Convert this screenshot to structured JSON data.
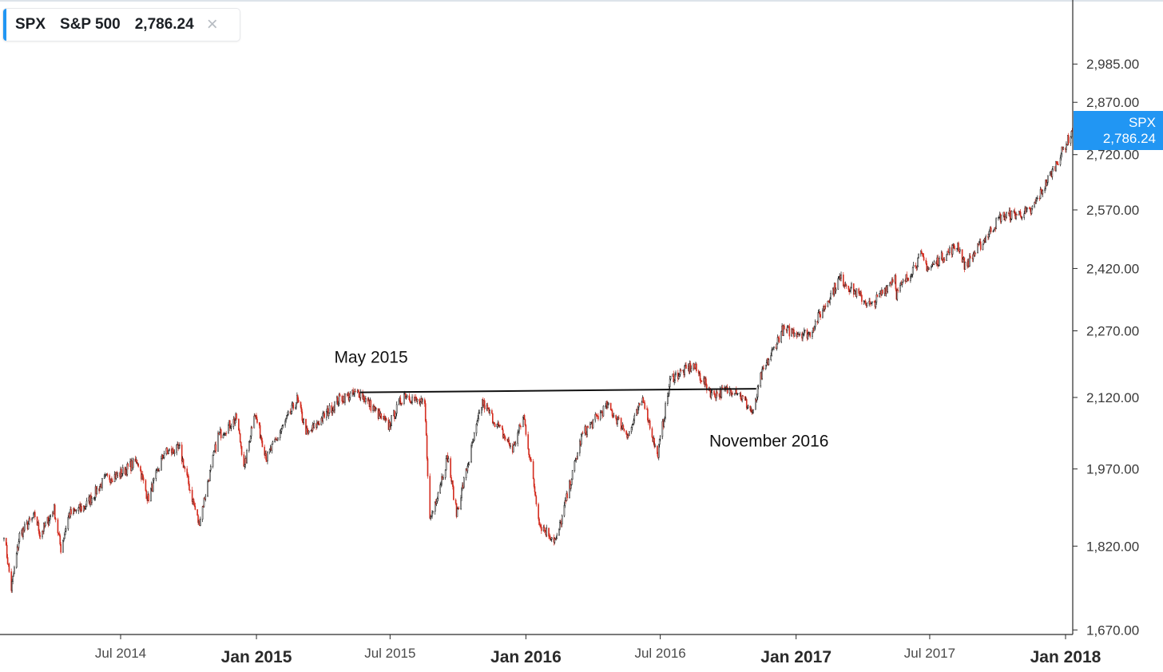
{
  "header": {
    "symbol": "SPX",
    "name": "S&P 500",
    "price": "2,786.24",
    "close_glyph": "×",
    "close_icon": "close-icon"
  },
  "price_tag": {
    "symbol": "SPX",
    "price": "2,786.24"
  },
  "colors": {
    "accent": "#2196f3",
    "up": "#111111",
    "down": "#d32b1e",
    "axis": "#2a2a2a",
    "text": "#333333",
    "annotation_line": "#111111"
  },
  "chart_data": {
    "type": "candlestick",
    "title": "",
    "xlabel": "",
    "ylabel": "",
    "grid": false,
    "x_range": [
      "2014-01-24",
      "2018-01-10"
    ],
    "ylim": [
      1670,
      3100
    ],
    "y_scale": "log",
    "yticks": [
      {
        "value": 1670,
        "label": "1,670.00"
      },
      {
        "value": 1820,
        "label": "1,820.00"
      },
      {
        "value": 1970,
        "label": "1,970.00"
      },
      {
        "value": 2120,
        "label": "2,120.00"
      },
      {
        "value": 2270,
        "label": "2,270.00"
      },
      {
        "value": 2420,
        "label": "2,420.00"
      },
      {
        "value": 2570,
        "label": "2,570.00"
      },
      {
        "value": 2720,
        "label": "2,720.00"
      },
      {
        "value": 2870,
        "label": "2,870.00"
      },
      {
        "value": 2985,
        "label": "2,985.00"
      }
    ],
    "xticks": [
      {
        "date": "2014-07-01",
        "label": "Jul 2014",
        "major": false
      },
      {
        "date": "2015-01-01",
        "label": "Jan 2015",
        "major": true
      },
      {
        "date": "2015-07-01",
        "label": "Jul 2015",
        "major": false
      },
      {
        "date": "2016-01-01",
        "label": "Jan 2016",
        "major": true
      },
      {
        "date": "2016-07-01",
        "label": "Jul 2016",
        "major": false
      },
      {
        "date": "2017-01-01",
        "label": "Jan 2017",
        "major": true
      },
      {
        "date": "2017-07-01",
        "label": "Jul 2017",
        "major": false
      },
      {
        "date": "2018-01-01",
        "label": "Jan 2018",
        "major": true
      }
    ],
    "series": [
      {
        "points": [
          [
            "2014-01-24",
            1845
          ],
          [
            "2014-02-03",
            1742
          ],
          [
            "2014-02-14",
            1840
          ],
          [
            "2014-03-07",
            1878
          ],
          [
            "2014-03-14",
            1842
          ],
          [
            "2014-04-02",
            1890
          ],
          [
            "2014-04-11",
            1815
          ],
          [
            "2014-04-22",
            1880
          ],
          [
            "2014-05-14",
            1896
          ],
          [
            "2014-06-10",
            1950
          ],
          [
            "2014-06-30",
            1960
          ],
          [
            "2014-07-24",
            1987
          ],
          [
            "2014-08-07",
            1910
          ],
          [
            "2014-08-29",
            2003
          ],
          [
            "2014-09-19",
            2010
          ],
          [
            "2014-10-15",
            1862
          ],
          [
            "2014-11-10",
            2038
          ],
          [
            "2014-12-05",
            2075
          ],
          [
            "2014-12-16",
            1972
          ],
          [
            "2014-12-29",
            2090
          ],
          [
            "2015-01-15",
            1992
          ],
          [
            "2015-02-25",
            2115
          ],
          [
            "2015-03-11",
            2040
          ],
          [
            "2015-04-24",
            2118
          ],
          [
            "2015-05-21",
            2130
          ],
          [
            "2015-06-29",
            2058
          ],
          [
            "2015-07-20",
            2128
          ],
          [
            "2015-08-17",
            2102
          ],
          [
            "2015-08-24",
            1868
          ],
          [
            "2015-09-17",
            1995
          ],
          [
            "2015-09-29",
            1882
          ],
          [
            "2015-11-03",
            2110
          ],
          [
            "2015-12-14",
            2010
          ],
          [
            "2015-12-29",
            2080
          ],
          [
            "2016-01-20",
            1860
          ],
          [
            "2016-02-11",
            1829
          ],
          [
            "2016-03-17",
            2040
          ],
          [
            "2016-04-20",
            2102
          ],
          [
            "2016-05-19",
            2040
          ],
          [
            "2016-06-08",
            2120
          ],
          [
            "2016-06-27",
            1995
          ],
          [
            "2016-07-15",
            2162
          ],
          [
            "2016-08-15",
            2190
          ],
          [
            "2016-09-09",
            2127
          ],
          [
            "2016-10-11",
            2139
          ],
          [
            "2016-11-04",
            2085
          ],
          [
            "2016-11-14",
            2164
          ],
          [
            "2016-12-13",
            2271
          ],
          [
            "2017-01-19",
            2263
          ],
          [
            "2017-03-01",
            2396
          ],
          [
            "2017-04-13",
            2328
          ],
          [
            "2017-05-15",
            2402
          ],
          [
            "2017-05-17",
            2357
          ],
          [
            "2017-06-19",
            2453
          ],
          [
            "2017-06-29",
            2419
          ],
          [
            "2017-08-08",
            2480
          ],
          [
            "2017-08-18",
            2425
          ],
          [
            "2017-10-05",
            2552
          ],
          [
            "2017-11-15",
            2565
          ],
          [
            "2017-12-18",
            2690
          ],
          [
            "2018-01-10",
            2786
          ]
        ]
      }
    ],
    "annotations": [
      {
        "text": "May 2015",
        "date": "2015-05-21",
        "value": 2130
      },
      {
        "text": "November 2016",
        "date": "2016-11-04",
        "value": 2085
      }
    ],
    "trendline": {
      "from": [
        "2015-05-21",
        2131
      ],
      "to": [
        "2016-11-08",
        2139
      ]
    },
    "last_value": 2786.24
  }
}
